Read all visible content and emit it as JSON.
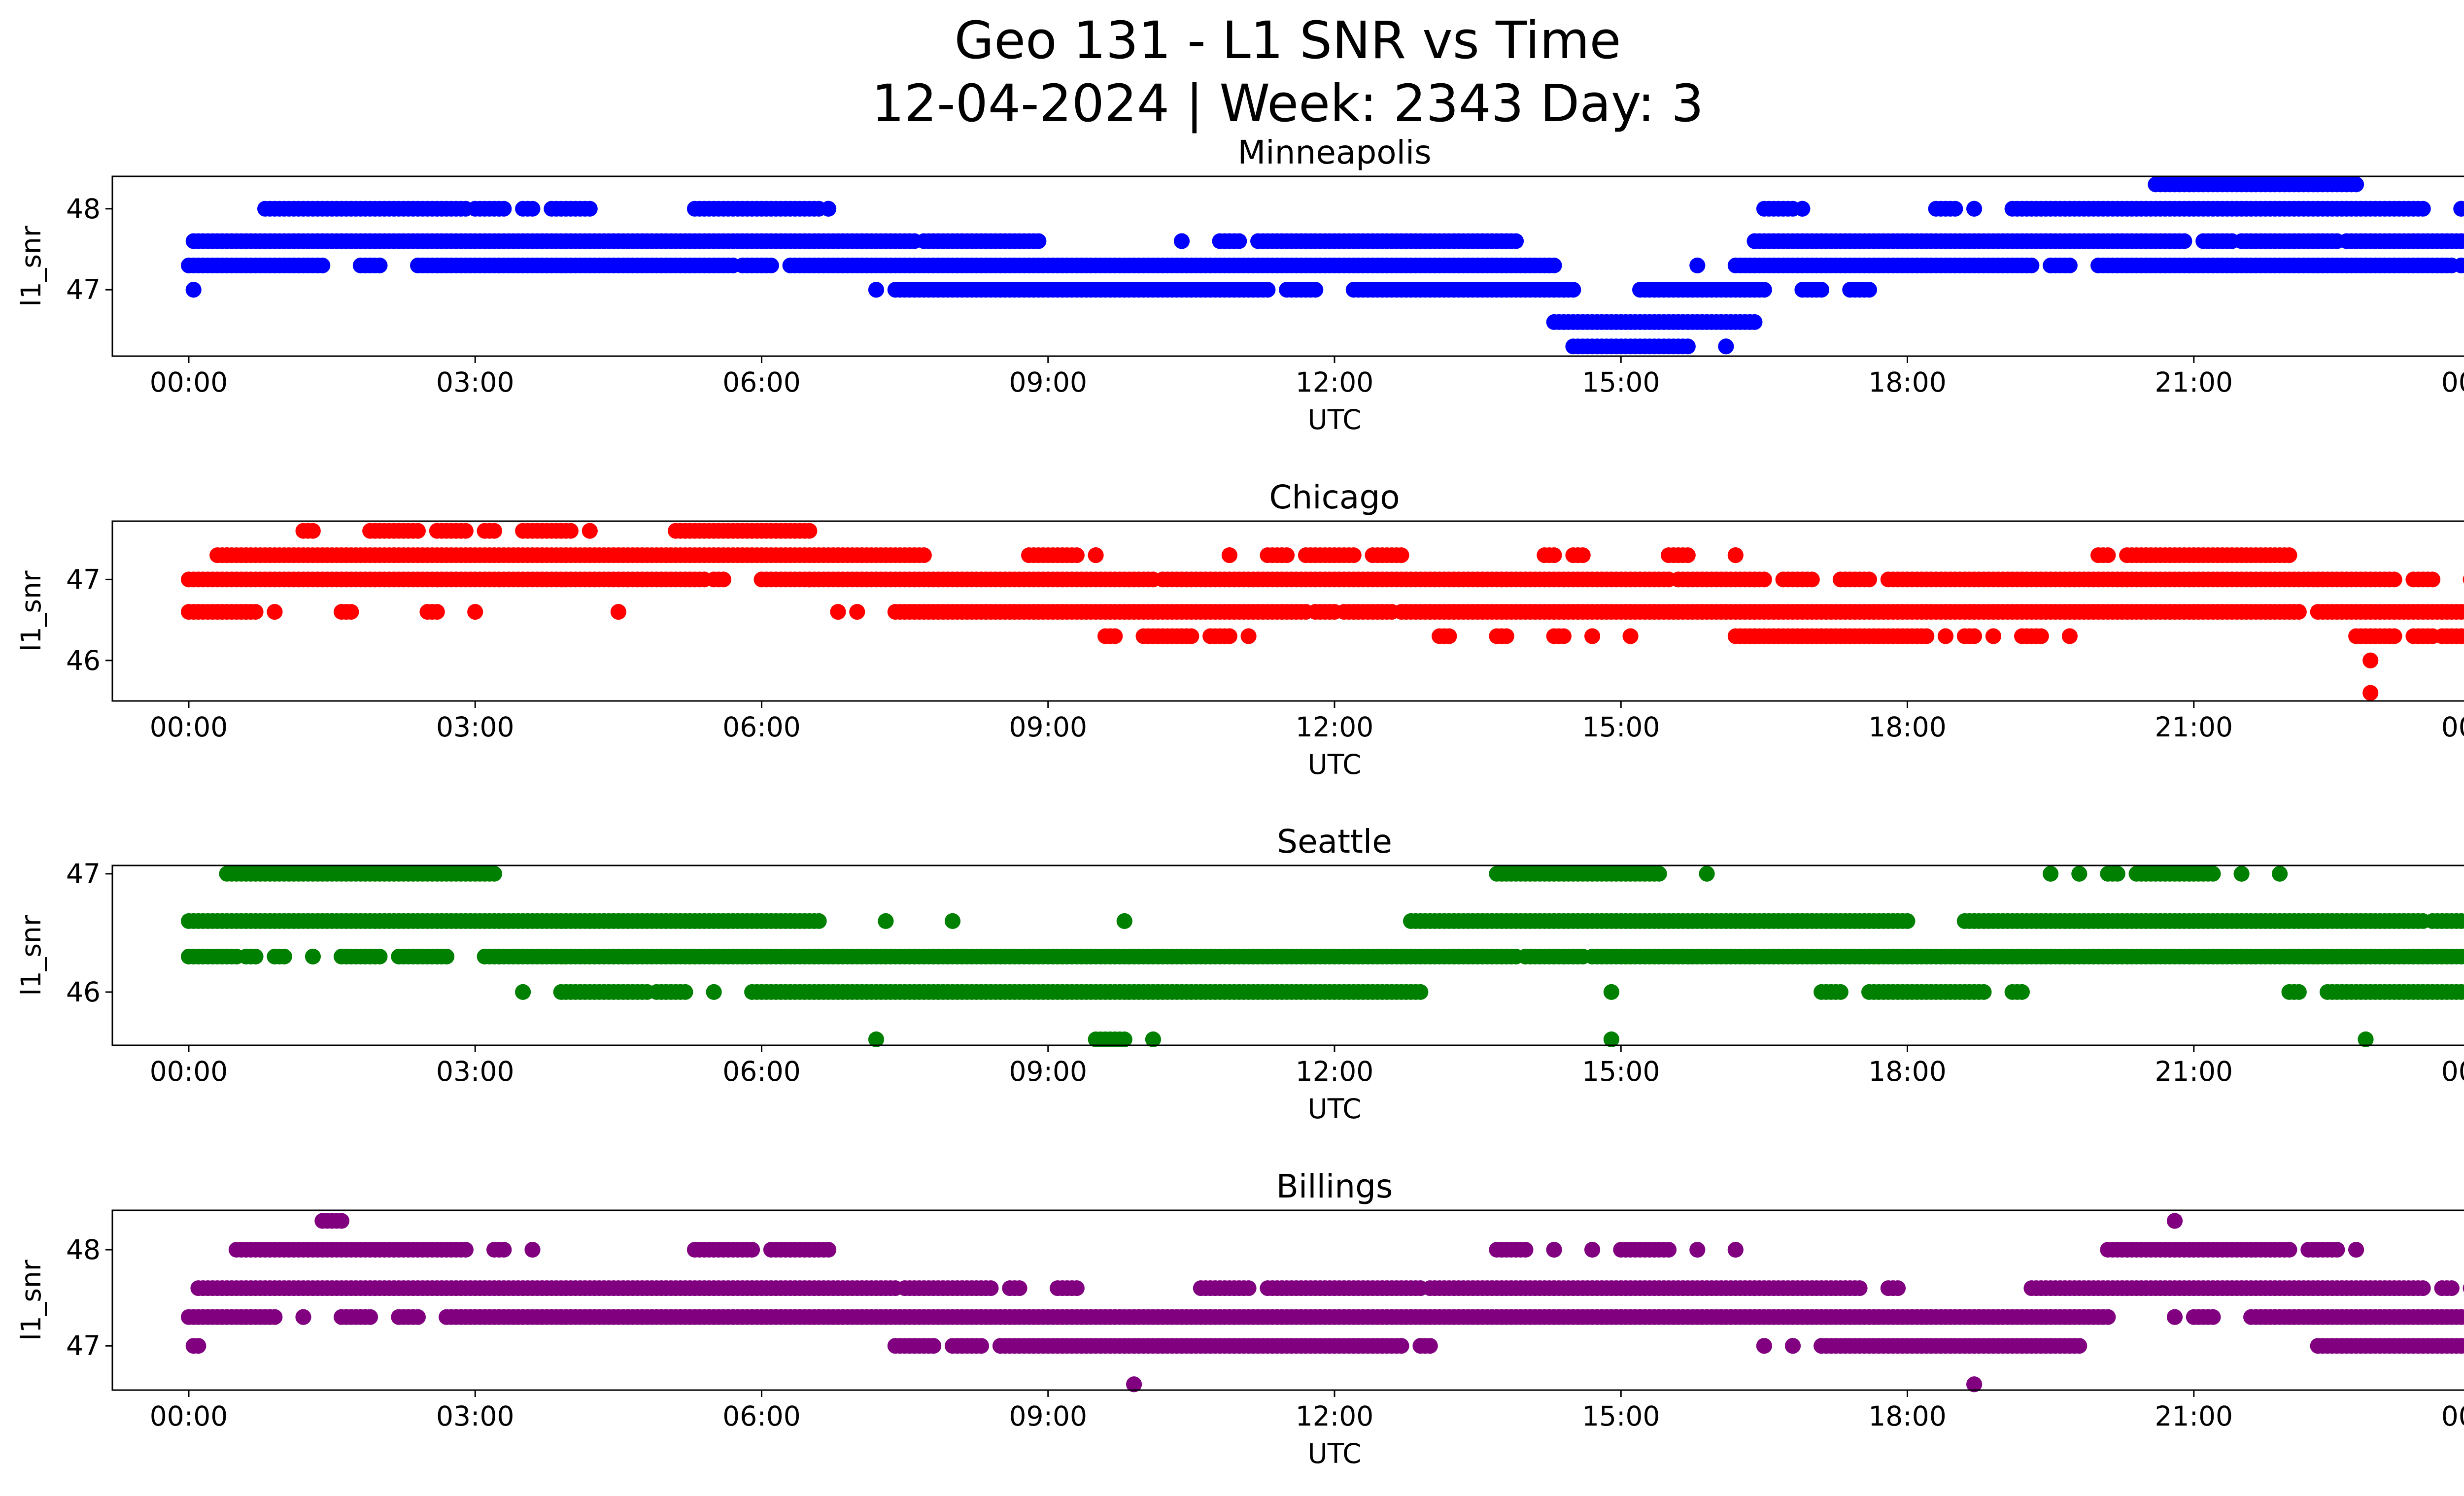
{
  "figure": {
    "title_line1": "Geo 131 - L1 SNR vs Time",
    "title_line2": "12-04-2024 | Week: 2343 Day: 3"
  },
  "chart_data": [
    {
      "type": "scatter",
      "title": "Minneapolis",
      "xlabel": "UTC",
      "ylabel": "l1_snr",
      "color": "#0000ff",
      "xlim": [
        -0.8,
        24.8
      ],
      "ylim": [
        46.18,
        48.4
      ],
      "x_ticks": [
        0,
        3,
        6,
        9,
        12,
        15,
        18,
        21,
        24
      ],
      "x_tick_labels": [
        "00:00",
        "03:00",
        "06:00",
        "09:00",
        "12:00",
        "15:00",
        "18:00",
        "21:00",
        "00:00"
      ],
      "y_ticks": [
        47,
        48
      ],
      "y_tick_labels": [
        "47",
        "48"
      ],
      "bands": [
        {
          "y": 48.3,
          "ranges": [
            [
              20.6,
              22.7
            ]
          ]
        },
        {
          "y": 48.0,
          "ranges": [
            [
              0.8,
              2.9
            ],
            [
              3.0,
              3.3
            ],
            [
              3.5,
              3.6
            ],
            [
              3.8,
              4.2
            ],
            [
              5.3,
              6.6
            ],
            [
              6.7,
              6.7
            ],
            [
              18.3,
              18.5
            ],
            [
              18.7,
              18.7
            ],
            [
              19.1,
              23.4
            ],
            [
              23.8,
              23.8
            ],
            [
              16.5,
              16.8
            ],
            [
              16.9,
              16.9
            ]
          ]
        },
        {
          "y": 47.6,
          "ranges": [
            [
              0.05,
              7.6
            ],
            [
              7.7,
              8.9
            ],
            [
              10.4,
              10.4
            ],
            [
              10.8,
              11.0
            ],
            [
              11.2,
              13.9
            ],
            [
              16.4,
              20.9
            ],
            [
              21.1,
              21.4
            ],
            [
              21.5,
              22.5
            ],
            [
              22.6,
              24.0
            ]
          ]
        },
        {
          "y": 47.3,
          "ranges": [
            [
              0.0,
              1.4
            ],
            [
              1.8,
              2.0
            ],
            [
              2.4,
              5.7
            ],
            [
              5.8,
              6.1
            ],
            [
              6.3,
              14.3
            ],
            [
              15.8,
              15.8
            ],
            [
              16.2,
              19.3
            ],
            [
              19.5,
              19.7
            ],
            [
              20.0,
              23.7
            ],
            [
              23.8,
              24.0
            ]
          ]
        },
        {
          "y": 47.0,
          "ranges": [
            [
              0.05,
              0.05
            ],
            [
              7.2,
              7.2
            ],
            [
              7.4,
              11.3
            ],
            [
              11.5,
              11.8
            ],
            [
              12.2,
              14.5
            ],
            [
              15.2,
              16.5
            ],
            [
              16.9,
              17.1
            ],
            [
              17.4,
              17.6
            ]
          ]
        },
        {
          "y": 46.6,
          "ranges": [
            [
              14.3,
              16.4
            ]
          ]
        },
        {
          "y": 46.3,
          "ranges": [
            [
              14.5,
              15.7
            ],
            [
              16.1,
              16.1
            ]
          ]
        }
      ]
    },
    {
      "type": "scatter",
      "title": "Chicago",
      "xlabel": "UTC",
      "ylabel": "l1_snr",
      "color": "#ff0000",
      "xlim": [
        -0.8,
        24.8
      ],
      "ylim": [
        45.5,
        47.72
      ],
      "x_ticks": [
        0,
        3,
        6,
        9,
        12,
        15,
        18,
        21,
        24
      ],
      "x_tick_labels": [
        "00:00",
        "03:00",
        "06:00",
        "09:00",
        "12:00",
        "15:00",
        "18:00",
        "21:00",
        "00:00"
      ],
      "y_ticks": [
        46,
        47
      ],
      "y_tick_labels": [
        "46",
        "47"
      ],
      "bands": [
        {
          "y": 47.6,
          "ranges": [
            [
              1.2,
              1.3
            ],
            [
              1.9,
              2.4
            ],
            [
              2.6,
              2.9
            ],
            [
              3.1,
              3.2
            ],
            [
              3.5,
              4.0
            ],
            [
              4.2,
              4.2
            ],
            [
              5.1,
              6.5
            ]
          ]
        },
        {
          "y": 47.3,
          "ranges": [
            [
              0.3,
              0.4
            ],
            [
              0.4,
              7.7
            ],
            [
              8.8,
              9.3
            ],
            [
              9.5,
              9.5
            ],
            [
              10.9,
              10.9
            ],
            [
              11.3,
              11.5
            ],
            [
              11.7,
              12.2
            ],
            [
              12.4,
              12.7
            ],
            [
              14.2,
              14.3
            ],
            [
              14.5,
              14.6
            ],
            [
              15.5,
              15.7
            ],
            [
              16.2,
              16.2
            ],
            [
              20.0,
              20.1
            ],
            [
              20.3,
              22.0
            ]
          ]
        },
        {
          "y": 47.0,
          "ranges": [
            [
              0.0,
              5.4
            ],
            [
              5.5,
              5.6
            ],
            [
              6.0,
              6.5
            ],
            [
              6.5,
              10.1
            ],
            [
              10.2,
              15.5
            ],
            [
              15.6,
              16.5
            ],
            [
              16.7,
              17.0
            ],
            [
              17.3,
              17.6
            ],
            [
              17.8,
              23.1
            ],
            [
              23.3,
              23.5
            ],
            [
              23.9,
              24.0
            ]
          ]
        },
        {
          "y": 46.6,
          "ranges": [
            [
              0.0,
              0.7
            ],
            [
              0.9,
              0.9
            ],
            [
              1.6,
              1.7
            ],
            [
              2.5,
              2.6
            ],
            [
              3.0,
              3.0
            ],
            [
              4.5,
              4.5
            ],
            [
              6.8,
              6.8
            ],
            [
              7.0,
              7.0
            ],
            [
              7.4,
              11.7
            ],
            [
              11.8,
              12.0
            ],
            [
              12.1,
              12.6
            ],
            [
              12.7,
              22.1
            ],
            [
              22.3,
              24.0
            ]
          ]
        },
        {
          "y": 46.3,
          "ranges": [
            [
              9.6,
              9.7
            ],
            [
              10.0,
              10.5
            ],
            [
              10.7,
              10.9
            ],
            [
              11.1,
              11.1
            ],
            [
              13.1,
              13.2
            ],
            [
              13.7,
              13.8
            ],
            [
              14.3,
              14.4
            ],
            [
              14.7,
              14.7
            ],
            [
              15.1,
              15.1
            ],
            [
              16.2,
              18.2
            ],
            [
              18.4,
              18.4
            ],
            [
              18.6,
              18.7
            ],
            [
              18.9,
              18.9
            ],
            [
              19.2,
              19.4
            ],
            [
              19.7,
              19.7
            ],
            [
              22.7,
              23.1
            ],
            [
              23.3,
              23.5
            ],
            [
              23.6,
              24.0
            ]
          ]
        },
        {
          "y": 46.0,
          "ranges": [
            [
              22.85,
              22.85
            ]
          ]
        },
        {
          "y": 45.6,
          "ranges": [
            [
              22.85,
              22.85
            ]
          ]
        }
      ]
    },
    {
      "type": "scatter",
      "title": "Seattle",
      "xlabel": "UTC",
      "ylabel": "l1_snr",
      "color": "#008000",
      "xlim": [
        -0.8,
        24.8
      ],
      "ylim": [
        45.55,
        47.07
      ],
      "x_ticks": [
        0,
        3,
        6,
        9,
        12,
        15,
        18,
        21,
        24
      ],
      "x_tick_labels": [
        "00:00",
        "03:00",
        "06:00",
        "09:00",
        "12:00",
        "15:00",
        "18:00",
        "21:00",
        "00:00"
      ],
      "y_ticks": [
        46,
        47
      ],
      "y_tick_labels": [
        "46",
        "47"
      ],
      "bands": [
        {
          "y": 47.0,
          "ranges": [
            [
              0.4,
              3.2
            ],
            [
              13.7,
              15.4
            ],
            [
              15.9,
              15.9
            ],
            [
              19.5,
              19.5
            ],
            [
              19.8,
              19.8
            ],
            [
              20.1,
              20.2
            ],
            [
              20.4,
              21.2
            ],
            [
              21.5,
              21.5
            ],
            [
              21.9,
              21.9
            ]
          ]
        },
        {
          "y": 46.6,
          "ranges": [
            [
              0.0,
              6.6
            ],
            [
              7.3,
              7.3
            ],
            [
              8.0,
              8.0
            ],
            [
              9.8,
              9.8
            ],
            [
              12.8,
              18.0
            ],
            [
              18.6,
              23.4
            ],
            [
              23.5,
              23.8
            ],
            [
              24.0,
              24.0
            ]
          ]
        },
        {
          "y": 46.3,
          "ranges": [
            [
              0.0,
              0.5
            ],
            [
              0.6,
              0.7
            ],
            [
              0.9,
              1.0
            ],
            [
              1.3,
              1.3
            ],
            [
              1.6,
              2.0
            ],
            [
              2.2,
              2.7
            ],
            [
              3.1,
              13.9
            ],
            [
              14.0,
              14.6
            ],
            [
              14.7,
              24.0
            ]
          ]
        },
        {
          "y": 46.0,
          "ranges": [
            [
              3.5,
              3.5
            ],
            [
              3.9,
              4.8
            ],
            [
              4.9,
              5.2
            ],
            [
              5.5,
              5.5
            ],
            [
              5.9,
              12.9
            ],
            [
              14.9,
              14.9
            ],
            [
              17.1,
              17.3
            ],
            [
              17.6,
              18.8
            ],
            [
              19.1,
              19.2
            ],
            [
              22.0,
              22.1
            ],
            [
              22.4,
              24.0
            ]
          ]
        },
        {
          "y": 45.6,
          "ranges": [
            [
              7.2,
              7.2
            ],
            [
              9.5,
              9.8
            ],
            [
              10.1,
              10.1
            ],
            [
              14.9,
              14.9
            ],
            [
              22.8,
              22.8
            ]
          ]
        }
      ]
    },
    {
      "type": "scatter",
      "title": "Billings",
      "xlabel": "UTC",
      "ylabel": "l1_snr",
      "color": "#800080",
      "xlim": [
        -0.8,
        24.8
      ],
      "ylim": [
        46.54,
        48.41
      ],
      "x_ticks": [
        0,
        3,
        6,
        9,
        12,
        15,
        18,
        21,
        24
      ],
      "x_tick_labels": [
        "00:00",
        "03:00",
        "06:00",
        "09:00",
        "12:00",
        "15:00",
        "18:00",
        "21:00",
        "00:00"
      ],
      "y_ticks": [
        47,
        48
      ],
      "y_tick_labels": [
        "47",
        "48"
      ],
      "bands": [
        {
          "y": 48.3,
          "ranges": [
            [
              1.4,
              1.6
            ],
            [
              20.8,
              20.8
            ]
          ]
        },
        {
          "y": 48.0,
          "ranges": [
            [
              0.5,
              2.9
            ],
            [
              3.2,
              3.3
            ],
            [
              3.6,
              3.6
            ],
            [
              5.3,
              5.9
            ],
            [
              6.1,
              6.7
            ],
            [
              13.7,
              14.0
            ],
            [
              14.3,
              14.3
            ],
            [
              14.7,
              14.7
            ],
            [
              15.0,
              15.5
            ],
            [
              15.8,
              15.8
            ],
            [
              16.2,
              16.2
            ],
            [
              20.1,
              22.0
            ],
            [
              22.2,
              22.5
            ],
            [
              22.7,
              22.7
            ]
          ]
        },
        {
          "y": 47.6,
          "ranges": [
            [
              0.1,
              7.4
            ],
            [
              7.5,
              8.4
            ],
            [
              8.6,
              8.7
            ],
            [
              9.1,
              9.3
            ],
            [
              10.6,
              11.1
            ],
            [
              11.3,
              12.9
            ],
            [
              13.0,
              17.5
            ],
            [
              17.8,
              17.9
            ],
            [
              19.3,
              23.4
            ],
            [
              23.6,
              23.7
            ],
            [
              23.9,
              24.0
            ]
          ]
        },
        {
          "y": 47.3,
          "ranges": [
            [
              0.0,
              0.9
            ],
            [
              1.2,
              1.2
            ],
            [
              1.6,
              1.9
            ],
            [
              2.2,
              2.4
            ],
            [
              2.7,
              20.1
            ],
            [
              20.8,
              20.8
            ],
            [
              21.0,
              21.2
            ],
            [
              21.6,
              24.0
            ]
          ]
        },
        {
          "y": 47.0,
          "ranges": [
            [
              0.05,
              0.1
            ],
            [
              7.4,
              7.8
            ],
            [
              8.0,
              8.3
            ],
            [
              8.5,
              12.7
            ],
            [
              12.9,
              13.0
            ],
            [
              16.5,
              16.5
            ],
            [
              16.8,
              16.8
            ],
            [
              17.1,
              19.8
            ],
            [
              22.3,
              24.0
            ]
          ]
        },
        {
          "y": 46.6,
          "ranges": [
            [
              9.9,
              9.9
            ],
            [
              18.7,
              18.7
            ]
          ]
        }
      ]
    }
  ]
}
